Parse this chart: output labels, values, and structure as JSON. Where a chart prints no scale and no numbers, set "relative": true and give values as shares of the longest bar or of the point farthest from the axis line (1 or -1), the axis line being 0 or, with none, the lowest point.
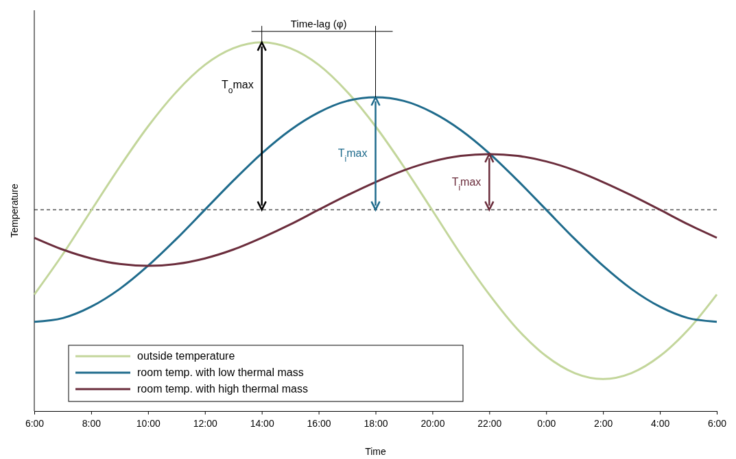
{
  "chart_data": {
    "type": "line",
    "relative": true,
    "xlabel": "Time",
    "ylabel": "Temperature",
    "x": [
      "2000-01-01T06:00",
      "2000-01-01T07:00",
      "2000-01-01T08:00",
      "2000-01-01T09:00",
      "2000-01-01T10:00",
      "2000-01-01T11:00",
      "2000-01-01T12:00",
      "2000-01-01T13:00",
      "2000-01-01T14:00",
      "2000-01-01T15:00",
      "2000-01-01T16:00",
      "2000-01-01T17:00",
      "2000-01-01T18:00",
      "2000-01-01T19:00",
      "2000-01-01T20:00",
      "2000-01-01T21:00",
      "2000-01-01T22:00",
      "2000-01-01T23:00",
      "2000-01-02T00:00",
      "2000-01-02T01:00",
      "2000-01-02T02:00",
      "2000-01-02T03:00",
      "2000-01-02T04:00",
      "2000-01-02T05:00",
      "2000-01-02T06:00"
    ],
    "xlim": [
      "2000-01-01T06:00",
      "2000-01-02T06:00"
    ],
    "xticks": [
      {
        "value": "2000-01-01T06:00",
        "label": "6:00"
      },
      {
        "value": "2000-01-01T08:00",
        "label": "8:00"
      },
      {
        "value": "2000-01-01T10:00",
        "label": "10:00"
      },
      {
        "value": "2000-01-01T12:00",
        "label": "12:00"
      },
      {
        "value": "2000-01-01T14:00",
        "label": "14:00"
      },
      {
        "value": "2000-01-01T16:00",
        "label": "16:00"
      },
      {
        "value": "2000-01-01T18:00",
        "label": "18:00"
      },
      {
        "value": "2000-01-01T20:00",
        "label": "20:00"
      },
      {
        "value": "2000-01-01T22:00",
        "label": "22:00"
      },
      {
        "value": "2000-01-02T00:00",
        "label": "0:00"
      },
      {
        "value": "2000-01-02T02:00",
        "label": "2:00"
      },
      {
        "value": "2000-01-02T04:00",
        "label": "4:00"
      },
      {
        "value": "2000-01-02T06:00",
        "label": "6:00"
      }
    ],
    "series": [
      {
        "name": "outside temperature",
        "color": "#c3d69b",
        "values": [
          0.316,
          0.425,
          0.544,
          0.662,
          0.772,
          0.866,
          0.939,
          0.984,
          1.0,
          0.984,
          0.939,
          0.866,
          0.772,
          0.662,
          0.544,
          0.425,
          0.316,
          0.221,
          0.149,
          0.103,
          0.087,
          0.103,
          0.149,
          0.221,
          0.316
        ]
      },
      {
        "name": "room temp. with low thermal mass",
        "color": "#1f6b8c",
        "values": [
          0.242,
          0.252,
          0.283,
          0.331,
          0.394,
          0.467,
          0.546,
          0.625,
          0.699,
          0.762,
          0.81,
          0.841,
          0.851,
          0.841,
          0.81,
          0.762,
          0.699,
          0.625,
          0.546,
          0.467,
          0.394,
          0.331,
          0.283,
          0.252,
          0.242
        ]
      },
      {
        "name": "room temp. with high thermal mass",
        "color": "#6b2d3c",
        "values": [
          0.47,
          0.438,
          0.414,
          0.399,
          0.394,
          0.399,
          0.414,
          0.438,
          0.47,
          0.506,
          0.546,
          0.585,
          0.621,
          0.653,
          0.677,
          0.692,
          0.697,
          0.692,
          0.677,
          0.653,
          0.621,
          0.585,
          0.546,
          0.506,
          0.47
        ]
      }
    ],
    "ref_lines": [
      {
        "axis": "y",
        "value": 0.546,
        "color": "#000000",
        "line_style": "dashed"
      }
    ],
    "annotations": [
      "T$_{o}$max",
      "T$_{i}$max",
      "T$_{i}$max",
      "Time-lag (φ)"
    ],
    "legend": "bottom left",
    "marker": "none",
    "line_style": "solid"
  }
}
